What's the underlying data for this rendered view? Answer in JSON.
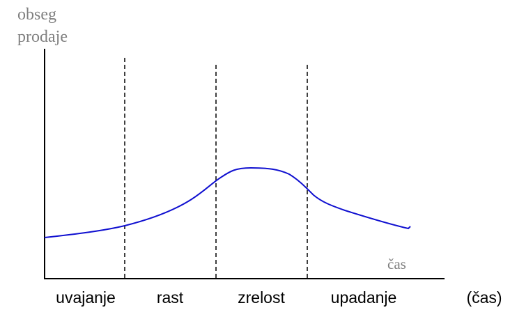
{
  "y_axis_label": [
    "obseg",
    "prodaje"
  ],
  "x_axis_label": "čas",
  "stages": [
    "uvajanje",
    "rast",
    "zrelost",
    "upadanje"
  ],
  "x_axis_caption": "(čas)"
}
